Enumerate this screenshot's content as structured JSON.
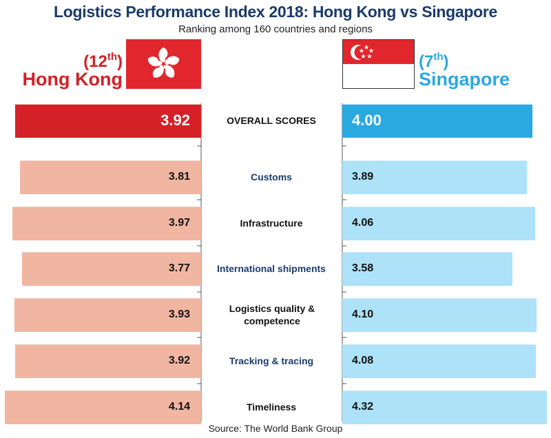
{
  "title": "Logistics Performance Index 2018: Hong Kong vs Singapore",
  "subtitle": "Ranking among 160 countries and regions",
  "source": "Source: The World Bank Group",
  "hong_kong": {
    "rank_prefix": "(12",
    "rank_sup": "th",
    "rank_suffix": ")",
    "name": "Hong Kong"
  },
  "singapore": {
    "rank_prefix": "(7",
    "rank_sup": "th",
    "rank_suffix": ")",
    "name": "Singapore"
  },
  "colors": {
    "hk_overall": "#d42027",
    "hk_bar": "#f0b6a2",
    "sg_overall": "#29a9e0",
    "sg_bar": "#ade2f8",
    "label_dark": "#111111",
    "label_blue": "#1a3a6b"
  },
  "chart_data": {
    "type": "bar",
    "categories": [
      "OVERALL SCORES",
      "Customs",
      "Infrastructure",
      "International shipments",
      "Logistics quality & competence",
      "Tracking & tracing",
      "Timeliness"
    ],
    "series": [
      {
        "name": "Hong Kong",
        "values": [
          3.92,
          3.81,
          3.97,
          3.77,
          3.93,
          3.92,
          4.14
        ]
      },
      {
        "name": "Singapore",
        "values": [
          4.0,
          3.89,
          4.06,
          3.58,
          4.1,
          4.08,
          4.32
        ]
      }
    ],
    "category_label_colors": [
      "dark",
      "blue",
      "dark",
      "blue",
      "dark",
      "blue",
      "dark"
    ],
    "layout": "butterfly",
    "value_labels": true
  }
}
